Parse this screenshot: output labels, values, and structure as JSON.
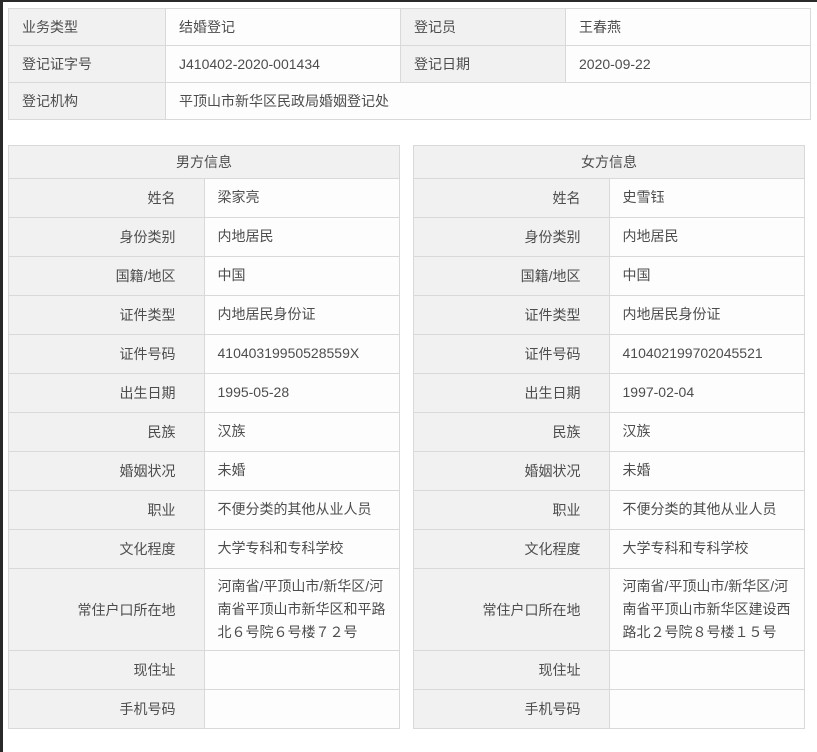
{
  "colors": {
    "label_cell_bg": "#f1f1f1",
    "value_cell_bg": "#fdfdfd",
    "cell_border": "#d9d9d9",
    "text": "#4d4d4d",
    "dark_edge": "#2a2a2a"
  },
  "registration": {
    "business_type_label": "业务类型",
    "business_type": "结婚登记",
    "registrar_label": "登记员",
    "registrar": "王春燕",
    "certificate_no_label": "登记证字号",
    "certificate_no": "J410402-2020-001434",
    "registration_date_label": "登记日期",
    "registration_date": "2020-09-22",
    "registration_office_label": "登记机构",
    "registration_office": "平顶山市新华区民政局婚姻登记处"
  },
  "male": {
    "title": "男方信息",
    "fields": [
      {
        "label": "姓名",
        "value": "梁家亮"
      },
      {
        "label": "身份类别",
        "value": "内地居民"
      },
      {
        "label": "国籍/地区",
        "value": "中国"
      },
      {
        "label": "证件类型",
        "value": "内地居民身份证"
      },
      {
        "label": "证件号码",
        "value": "41040319950528559X"
      },
      {
        "label": "出生日期",
        "value": "1995-05-28"
      },
      {
        "label": "民族",
        "value": "汉族"
      },
      {
        "label": "婚姻状况",
        "value": "未婚"
      },
      {
        "label": "职业",
        "value": "不便分类的其他从业人员"
      },
      {
        "label": "文化程度",
        "value": "大学专科和专科学校"
      },
      {
        "label": "常住户口所在地",
        "value": "河南省/平顶山市/新华区/河南省平顶山市新华区和平路北６号院６号楼７２号"
      },
      {
        "label": "现住址",
        "value": ""
      },
      {
        "label": "手机号码",
        "value": ""
      }
    ]
  },
  "female": {
    "title": "女方信息",
    "fields": [
      {
        "label": "姓名",
        "value": "史雪钰"
      },
      {
        "label": "身份类别",
        "value": "内地居民"
      },
      {
        "label": "国籍/地区",
        "value": "中国"
      },
      {
        "label": "证件类型",
        "value": "内地居民身份证"
      },
      {
        "label": "证件号码",
        "value": "410402199702045521"
      },
      {
        "label": "出生日期",
        "value": "1997-02-04"
      },
      {
        "label": "民族",
        "value": "汉族"
      },
      {
        "label": "婚姻状况",
        "value": "未婚"
      },
      {
        "label": "职业",
        "value": "不便分类的其他从业人员"
      },
      {
        "label": "文化程度",
        "value": "大学专科和专科学校"
      },
      {
        "label": "常住户口所在地",
        "value": "河南省/平顶山市/新华区/河南省平顶山市新华区建设西路北２号院８号楼１５号"
      },
      {
        "label": "现住址",
        "value": ""
      },
      {
        "label": "手机号码",
        "value": ""
      }
    ]
  }
}
